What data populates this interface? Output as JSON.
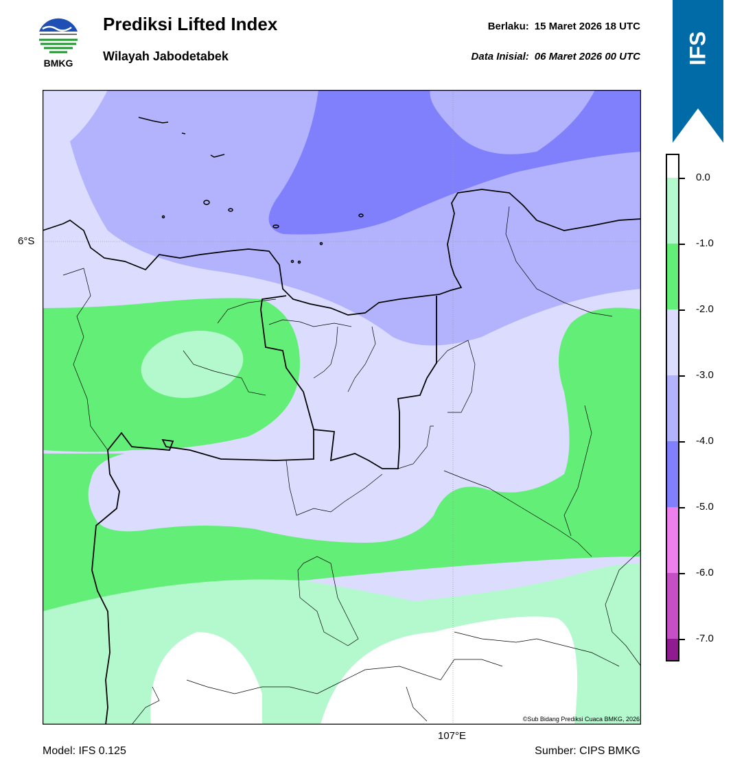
{
  "header": {
    "title": "Prediksi Lifted Index",
    "subtitle": "Wilayah Jabodetabek",
    "valid_label": "Berlaku:",
    "valid_value": "15 Maret 2026 18 UTC",
    "init_label": "Data Inisial:",
    "init_value": "06 Maret 2026 00 UTC"
  },
  "logo": {
    "text": "BMKG",
    "icon": "bmkg-logo"
  },
  "ribbon": {
    "text": "IFS",
    "color": "#006ba6"
  },
  "map": {
    "lat_label": "6°S",
    "lon_label": "107°E",
    "copyright": "©Sub Bidang Prediksi Cuaca BMKG, 2026"
  },
  "colorbar": {
    "labels": [
      "0.0",
      "-1.0",
      "-2.0",
      "-3.0",
      "-4.0",
      "-5.0",
      "-6.0",
      "-7.0"
    ],
    "bins": [
      {
        "min": -1.0,
        "max": 0.0,
        "color": "#b3f9cd"
      },
      {
        "min": -2.0,
        "max": -1.0,
        "color": "#62ee77"
      },
      {
        "min": -3.0,
        "max": -2.0,
        "color": "#dcdcfe"
      },
      {
        "min": -4.0,
        "max": -3.0,
        "color": "#b2b2fd"
      },
      {
        "min": -5.0,
        "max": -4.0,
        "color": "#8080fd"
      },
      {
        "min": -6.0,
        "max": -5.0,
        "color": "#ed80ed"
      },
      {
        "min": -7.0,
        "max": -6.0,
        "color": "#c64fc6"
      },
      {
        "min": -8.0,
        "max": -7.0,
        "color": "#901a90"
      }
    ]
  },
  "footer": {
    "model": "Model: IFS 0.125",
    "source": "Sumber: CIPS BMKG"
  }
}
